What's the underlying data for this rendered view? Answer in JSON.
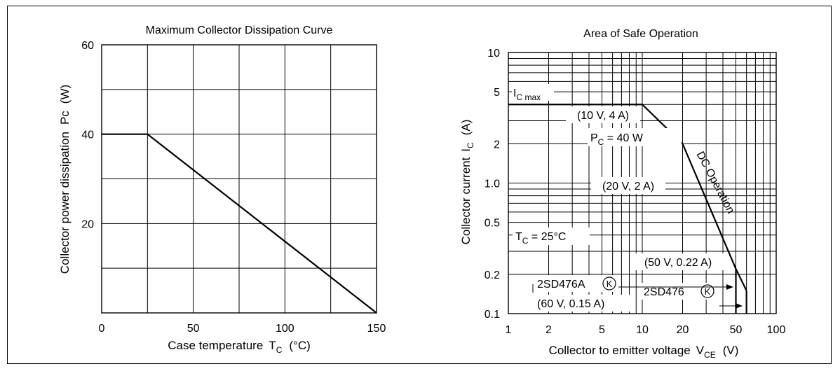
{
  "chart_data": [
    {
      "type": "line",
      "title": "Maximum Collector Dissipation Curve",
      "xlabel": "Case temperature",
      "xlabel_symbol": "T",
      "xlabel_sub": "C",
      "xlabel_unit": "(°C)",
      "ylabel": "Collector power dissipation",
      "ylabel_symbol": "Pc",
      "ylabel_unit": "(W)",
      "xlim": [
        0,
        150
      ],
      "ylim": [
        0,
        60
      ],
      "x_ticks": [
        0,
        50,
        100,
        150
      ],
      "x_tick_labels": [
        "0",
        "50",
        "100",
        "150"
      ],
      "y_ticks": [
        20,
        40,
        60
      ],
      "y_tick_labels": [
        "20",
        "40",
        "60"
      ],
      "grid": true,
      "x_gridlines": [
        25,
        50,
        75,
        100,
        125
      ],
      "y_gridlines": [
        10,
        20,
        30,
        40,
        50
      ],
      "series": [
        {
          "x": [
            0,
            25,
            150
          ],
          "y": [
            40,
            40,
            0
          ]
        }
      ]
    },
    {
      "type": "line",
      "title": "Area of Safe Operation",
      "xlabel": "Collector to emitter voltage",
      "xlabel_symbol": "V",
      "xlabel_sub": "CE",
      "xlabel_unit": "(V)",
      "ylabel": "Collector current",
      "ylabel_symbol": "I",
      "ylabel_sub": "C",
      "ylabel_unit": "(A)",
      "x_scale": "log",
      "y_scale": "log",
      "xlim": [
        1,
        100
      ],
      "ylim": [
        0.1,
        10
      ],
      "x_ticks": [
        1,
        2,
        5,
        10,
        20,
        50,
        100
      ],
      "x_tick_labels": [
        "1",
        "2",
        "5",
        "10",
        "20",
        "50",
        "100"
      ],
      "y_ticks": [
        0.1,
        0.2,
        0.5,
        1.0,
        2,
        5,
        10
      ],
      "y_tick_labels": [
        "0.1",
        "0.2",
        "0.5",
        "1.0",
        "2",
        "5",
        "10"
      ],
      "grid": true,
      "series": [
        {
          "name": "DC Operation",
          "x": [
            1,
            10,
            20,
            50,
            50
          ],
          "y": [
            4,
            4,
            2,
            0.22,
            0.1
          ]
        },
        {
          "x": [
            60,
            60
          ],
          "y": [
            0.15,
            0.1
          ]
        }
      ],
      "labels": {
        "ic_max_symbol": "I",
        "ic_max_sub": "C max",
        "point1": "(10 V, 4 A)",
        "pc_symbol": "P",
        "pc_sub": "C",
        "pc_rest": " = 40 W",
        "point2": "(20 V, 2 A)",
        "dc_operation": "DC Operation",
        "tc_symbol": "T",
        "tc_sub": "C",
        "tc_rest": " = 25°C",
        "point3": "(50 V, 0.22 A)",
        "part_a": "2SD476A",
        "part_a_mark": "K",
        "point4": "(60 V, 0.15 A)",
        "part_b": "2SD476",
        "part_b_mark": "K"
      }
    }
  ]
}
